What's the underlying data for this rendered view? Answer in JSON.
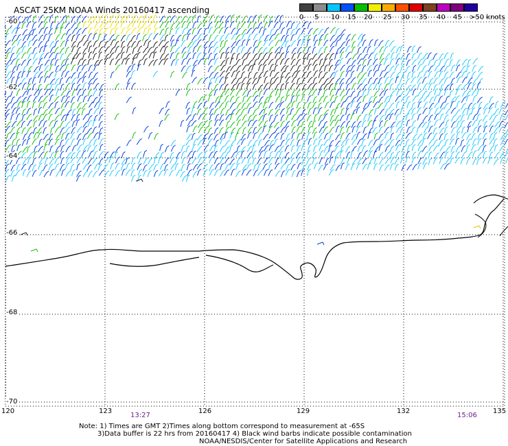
{
  "title": "ASCAT 25KM NOAA Winds 20160417 ascending",
  "colorbar": {
    "colors": [
      "#404040",
      "#8c8c8c",
      "#00c8ff",
      "#0050ff",
      "#00c000",
      "#f0f000",
      "#ffaa00",
      "#ff5000",
      "#e00000",
      "#804020",
      "#c000c0",
      "#800080",
      "#2000a0"
    ],
    "labels": [
      "0",
      "5",
      "10",
      "15",
      "20",
      "25",
      "30",
      "35",
      "40",
      "45",
      ">50 knots"
    ]
  },
  "lat_labels": [
    "-60",
    "-62",
    "-64",
    "-66",
    "-68",
    "-70"
  ],
  "lon_labels": [
    "120",
    "123",
    "126",
    "129",
    "132",
    "135"
  ],
  "time_labels": [
    "13:27",
    "15:06"
  ],
  "notes": {
    "line1": "Note: 1) Times are GMT 2)Times along bottom correspond to measurement at -65S",
    "line2": "3)Data buffer is 22 hrs from 20160417 4) Black wind barbs indicate possible contamination",
    "line3": "NOAA/NESDIS/Center for Satellite Applications and Research"
  },
  "map": {
    "type": "wind-barb-map",
    "lat_range": [
      -70,
      -60
    ],
    "lon_range": [
      120,
      135
    ],
    "wind_speed_units": "knots",
    "coastline": "Antarctic coast near -65.5S to -66.5S"
  }
}
